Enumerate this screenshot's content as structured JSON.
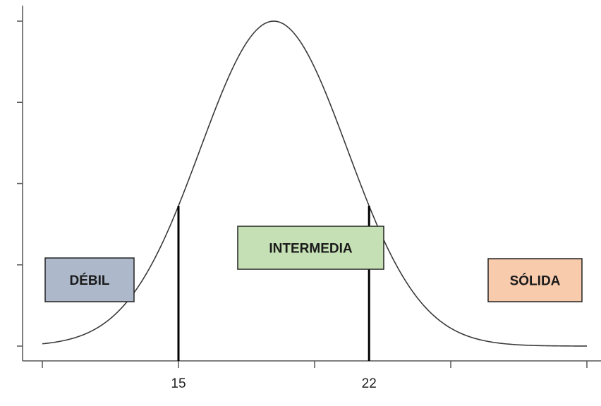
{
  "chart_data": {
    "type": "line",
    "title": "",
    "xlabel": "",
    "ylabel": "",
    "distribution": "normal",
    "mean": 18.5,
    "sd": 2.7,
    "xlim": [
      10,
      30
    ],
    "ylim": [
      0,
      1
    ],
    "x_ticks": [
      10,
      15,
      20,
      25,
      30
    ],
    "x_tick_labels": [
      {
        "value": 15,
        "label": "15"
      },
      {
        "value": 22,
        "label": "22"
      }
    ],
    "cutoffs": [
      {
        "value": 15,
        "label": "15"
      },
      {
        "value": 22,
        "label": "22"
      }
    ],
    "y_ticks_count": 5,
    "grid": false,
    "regions": [
      {
        "name": "DÉBIL",
        "color": "#adb9ca",
        "range": "below 15"
      },
      {
        "name": "INTERMEDIA",
        "color": "#c5e0b4",
        "range": "15 to 22"
      },
      {
        "name": "SÓLIDA",
        "color": "#f8cbad",
        "range": "above 22"
      }
    ]
  }
}
